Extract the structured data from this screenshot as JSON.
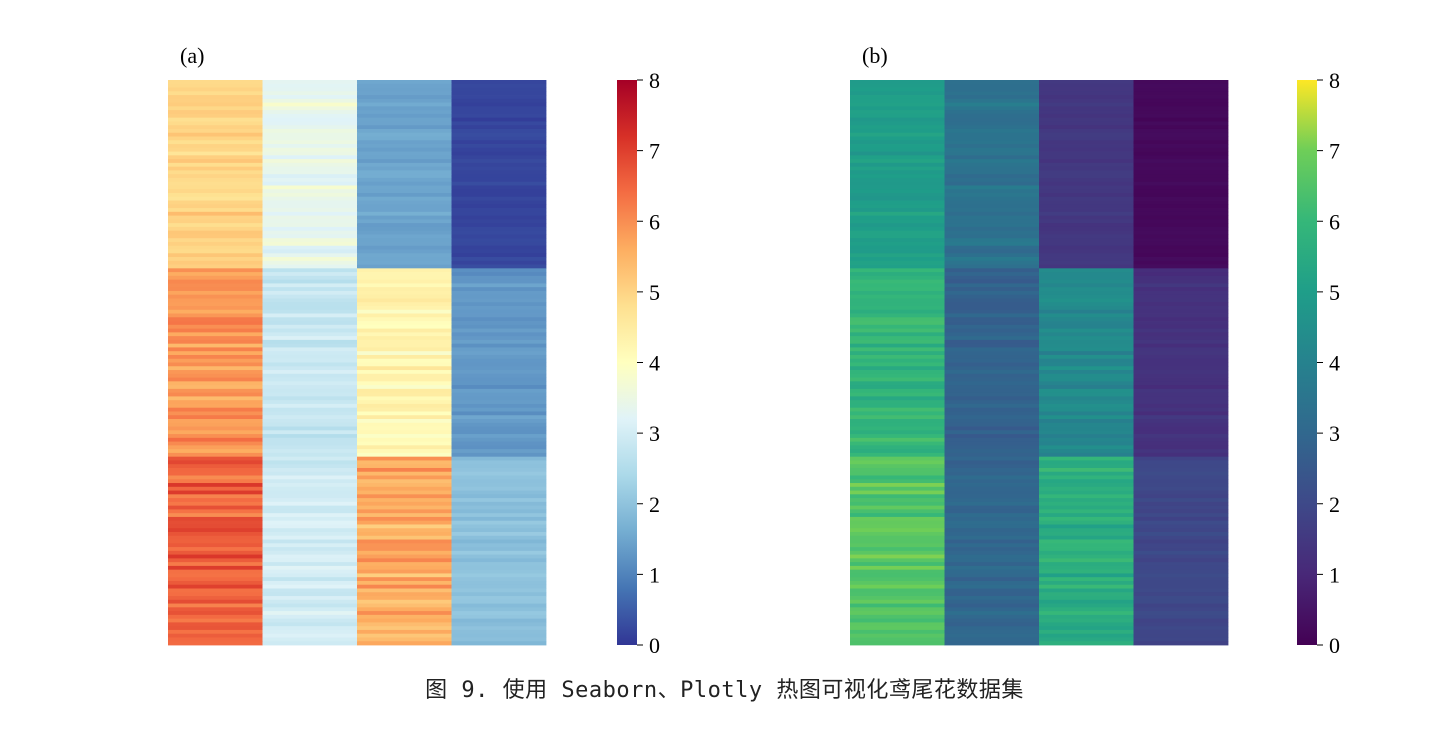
{
  "caption": "图 9. 使用 Seaborn、Plotly 热图可视化鸢尾花数据集",
  "chart_data": [
    {
      "type": "heatmap",
      "panel_label": "(a)",
      "colorscale": "Spectral_r",
      "colorbar": {
        "range": [
          0,
          8
        ],
        "ticks": [
          "0",
          "1",
          "2",
          "3",
          "4",
          "5",
          "6",
          "7",
          "8"
        ]
      },
      "rows": 150,
      "columns": 4,
      "column_means": {
        "group1": [
          5.0,
          3.4,
          1.5,
          0.2
        ],
        "group2": [
          5.9,
          2.8,
          4.3,
          1.3
        ],
        "group3": [
          6.6,
          3.0,
          5.6,
          2.0
        ]
      },
      "xlabel": "",
      "ylabel": ""
    },
    {
      "type": "heatmap",
      "panel_label": "(b)",
      "colorscale": "Viridis",
      "colorbar": {
        "range": [
          0,
          8
        ],
        "ticks": [
          "0",
          "1",
          "2",
          "3",
          "4",
          "5",
          "6",
          "7",
          "8"
        ]
      },
      "rows": 150,
      "columns": 4,
      "column_means": {
        "group1": [
          5.0,
          3.4,
          1.5,
          0.2
        ],
        "group2": [
          5.9,
          2.8,
          4.3,
          1.3
        ],
        "group3": [
          6.6,
          3.0,
          5.6,
          2.0
        ]
      },
      "xlabel": "",
      "ylabel": ""
    }
  ]
}
